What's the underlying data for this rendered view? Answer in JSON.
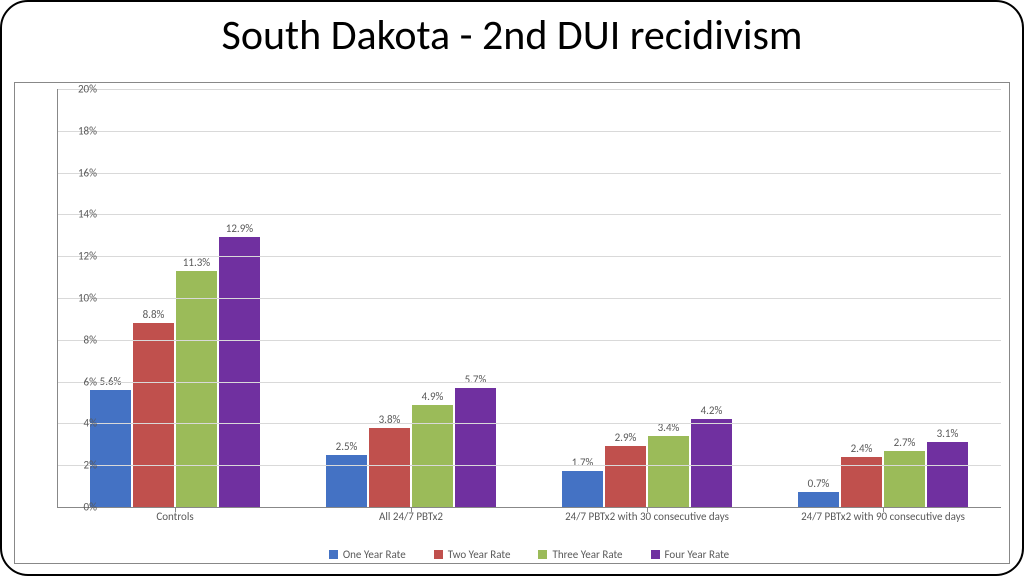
{
  "title": "South Dakota - 2nd DUI recidivism",
  "title_fontsize": 42,
  "chart": {
    "type": "bar",
    "background_color": "#ffffff",
    "border_color": "#888888",
    "grid_color": "#d9d9d9",
    "axis_color": "#888888",
    "label_color": "#595959",
    "y": {
      "min": 0,
      "max": 20,
      "step": 2,
      "ticks": [
        "0%",
        "2%",
        "4%",
        "6%",
        "8%",
        "10%",
        "12%",
        "14%",
        "16%",
        "18%",
        "20%"
      ],
      "fontsize": 11
    },
    "categories": [
      "Controls",
      "All 24/7 PBTx2",
      "24/7 PBTx2 with 30 consecutive days",
      "24/7 PBTx2 with 90 consecutive days"
    ],
    "category_fontsize": 11,
    "series": [
      {
        "name": "One Year Rate",
        "color": "#4472c4"
      },
      {
        "name": "Two Year Rate",
        "color": "#c0504d"
      },
      {
        "name": "Three Year Rate",
        "color": "#9bbb59"
      },
      {
        "name": "Four Year Rate",
        "color": "#7030a0"
      }
    ],
    "values": [
      [
        5.6,
        8.8,
        11.3,
        12.9
      ],
      [
        2.5,
        3.8,
        4.9,
        5.7
      ],
      [
        1.7,
        2.9,
        3.4,
        4.2
      ],
      [
        0.7,
        2.4,
        2.7,
        3.1
      ]
    ],
    "value_labels": [
      [
        "5.6%",
        "8.8%",
        "11.3%",
        "12.9%"
      ],
      [
        "2.5%",
        "3.8%",
        "4.9%",
        "5.7%"
      ],
      [
        "1.7%",
        "2.9%",
        "3.4%",
        "4.2%"
      ],
      [
        "0.7%",
        "2.4%",
        "2.7%",
        "3.1%"
      ]
    ],
    "bar_label_fontsize": 11,
    "legend_fontsize": 11
  }
}
